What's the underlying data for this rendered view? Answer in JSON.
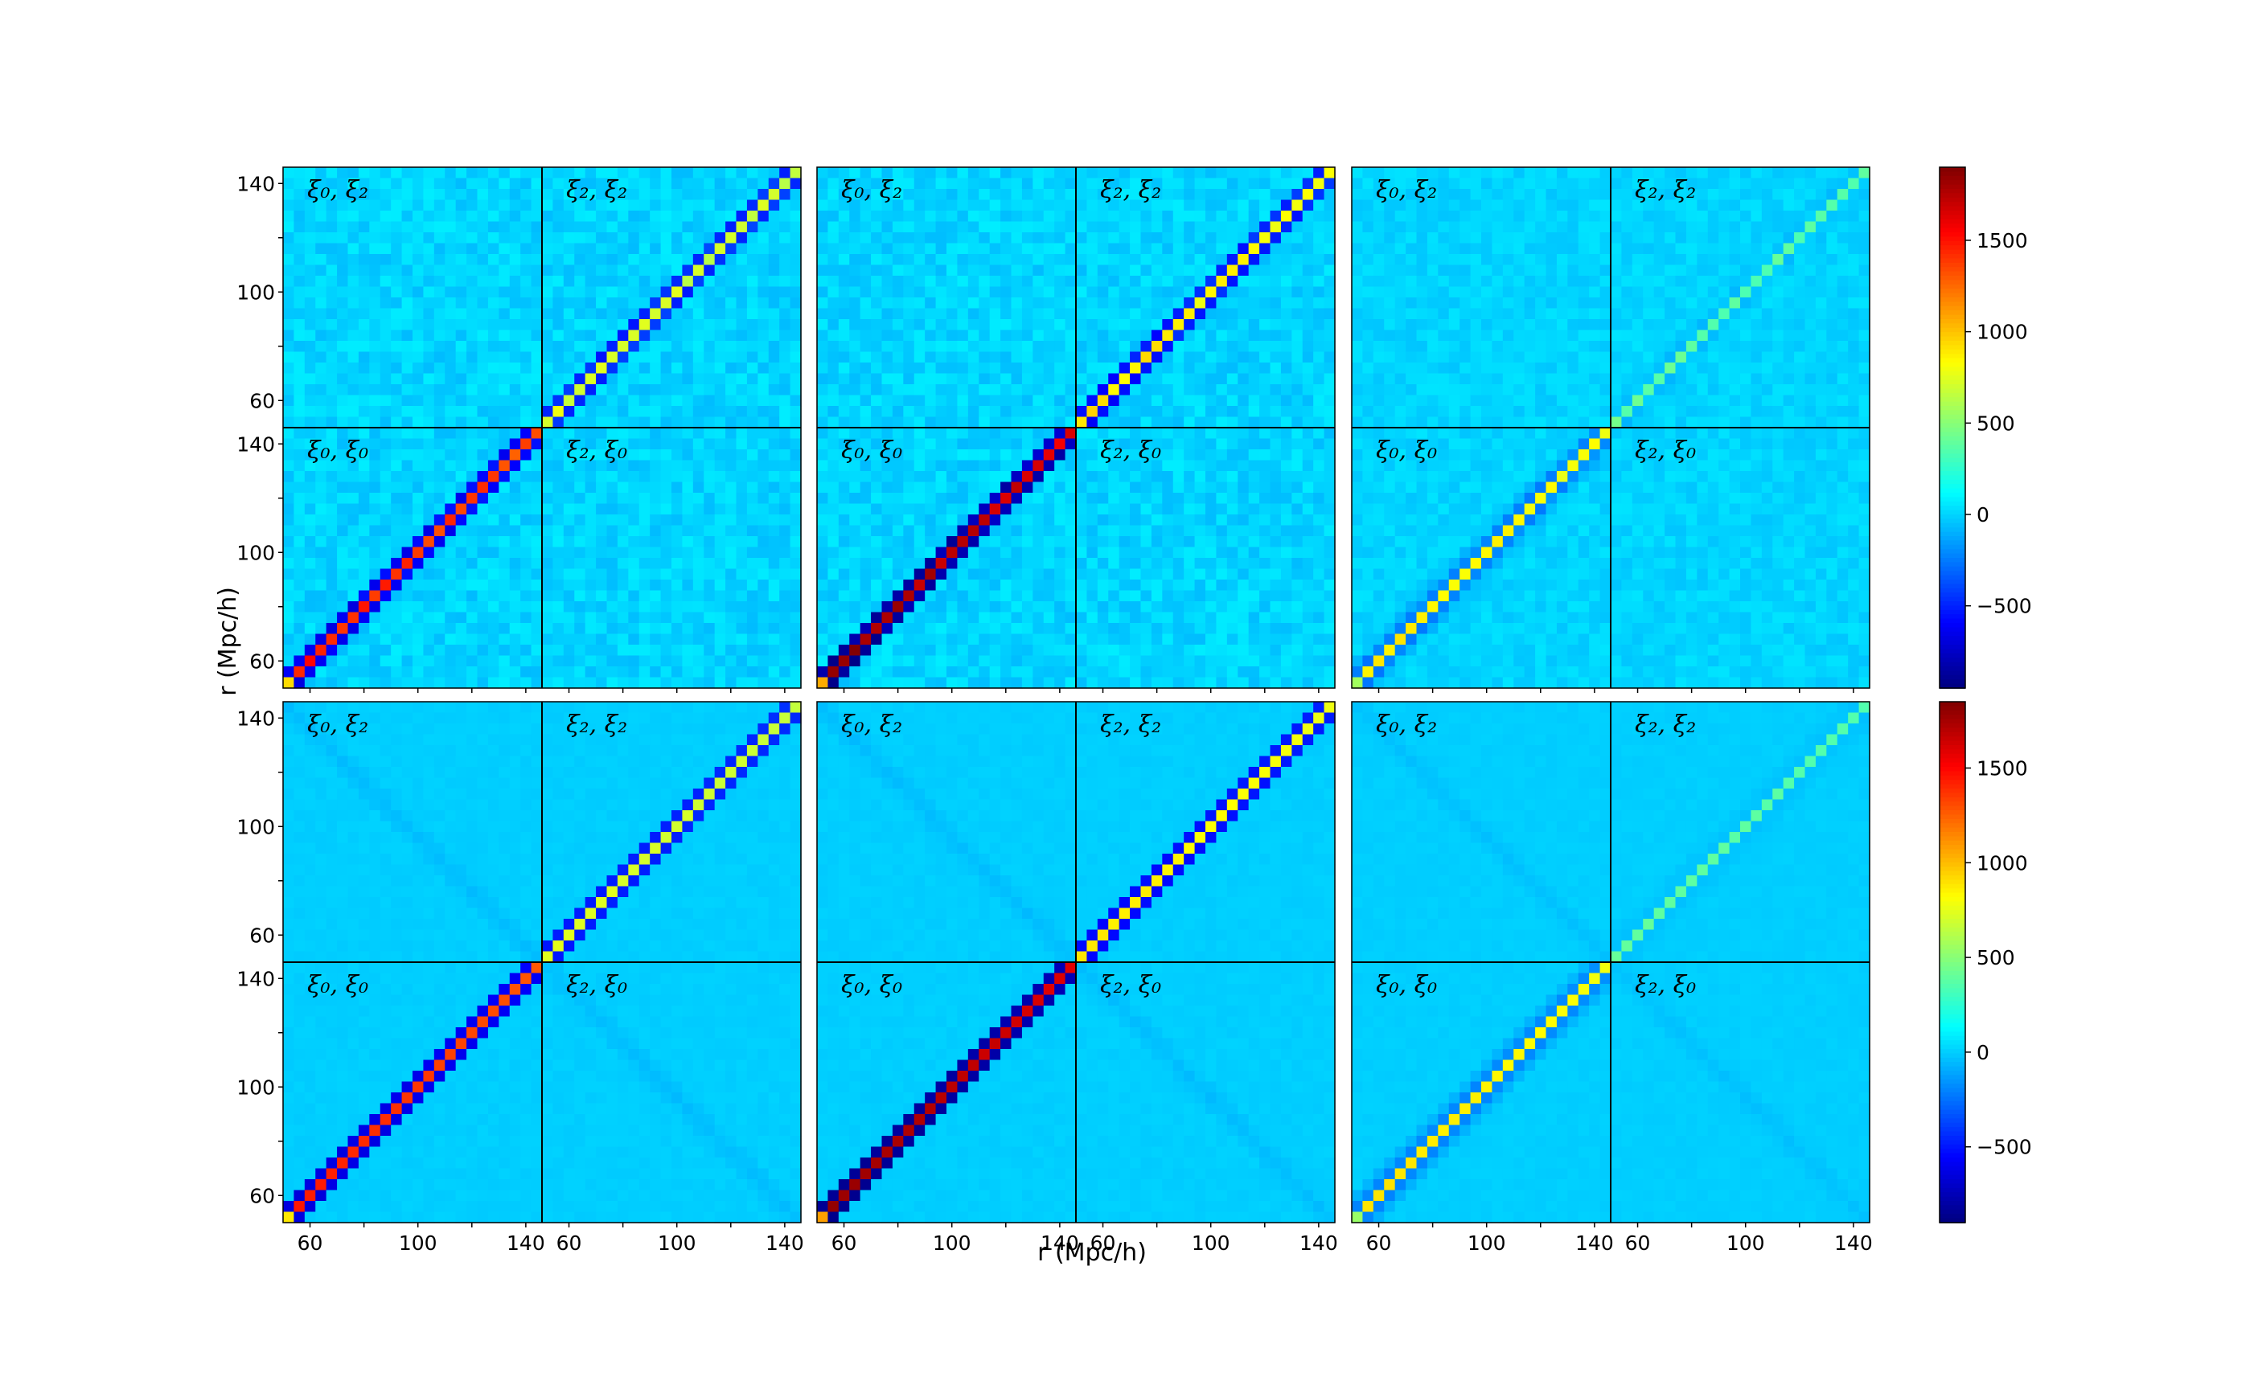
{
  "chart_data": {
    "type": "heatmap",
    "description_note": "",
    "xlabel": "r (Mpc/h)",
    "ylabel": "r (Mpc/h)",
    "r_bins": [
      52,
      56,
      60,
      64,
      68,
      72,
      76,
      80,
      84,
      88,
      92,
      96,
      100,
      104,
      108,
      112,
      116,
      120,
      124,
      128,
      132,
      136,
      140,
      144
    ],
    "tick_values": [
      60,
      100,
      140
    ],
    "block_labels": {
      "top_left": "ξ₀, ξ₂",
      "top_right": "ξ₂, ξ₂",
      "bottom_left": "ξ₀, ξ₀",
      "bottom_right": "ξ₂, ξ₀"
    },
    "colormap": "jet",
    "colorbars": [
      {
        "row": 0,
        "range": [
          -950,
          1900
        ],
        "ticks": [
          -500,
          0,
          500,
          1000,
          1500
        ],
        "tick_labels": [
          "−500",
          "0",
          "500",
          "1000",
          "1500"
        ]
      },
      {
        "row": 1,
        "range": [
          -900,
          1850
        ],
        "ticks": [
          -500,
          0,
          500,
          1000,
          1500
        ],
        "tick_labels": [
          "−500",
          "0",
          "500",
          "1000",
          "1500"
        ]
      }
    ],
    "panels": [
      {
        "row": 0,
        "col": 0,
        "xi0_diag": 1500,
        "xi0_offdiag": -650,
        "xi2_diag": 750,
        "xi2_offdiag": -500,
        "noise": 70,
        "cross": 0,
        "smooth": 0
      },
      {
        "row": 0,
        "col": 1,
        "xi0_diag": 1850,
        "xi0_offdiag": -880,
        "xi2_diag": 900,
        "xi2_offdiag": -550,
        "noise": 70,
        "cross": 0,
        "smooth": 0
      },
      {
        "row": 0,
        "col": 2,
        "xi0_diag": 900,
        "xi0_offdiag": -400,
        "xi2_diag": 400,
        "xi2_offdiag": -100,
        "noise": 45,
        "cross": 0,
        "smooth": 0.25
      },
      {
        "row": 1,
        "col": 0,
        "xi0_diag": 1450,
        "xi0_offdiag": -650,
        "xi2_diag": 750,
        "xi2_offdiag": -500,
        "noise": 12,
        "cross": -45,
        "smooth": 0
      },
      {
        "row": 1,
        "col": 1,
        "xi0_diag": 1800,
        "xi0_offdiag": -860,
        "xi2_diag": 880,
        "xi2_offdiag": -550,
        "noise": 12,
        "cross": -45,
        "smooth": 0
      },
      {
        "row": 1,
        "col": 2,
        "xi0_diag": 900,
        "xi0_offdiag": -400,
        "xi2_diag": 400,
        "xi2_offdiag": -100,
        "noise": 10,
        "cross": -35,
        "smooth": 0.3
      }
    ]
  }
}
